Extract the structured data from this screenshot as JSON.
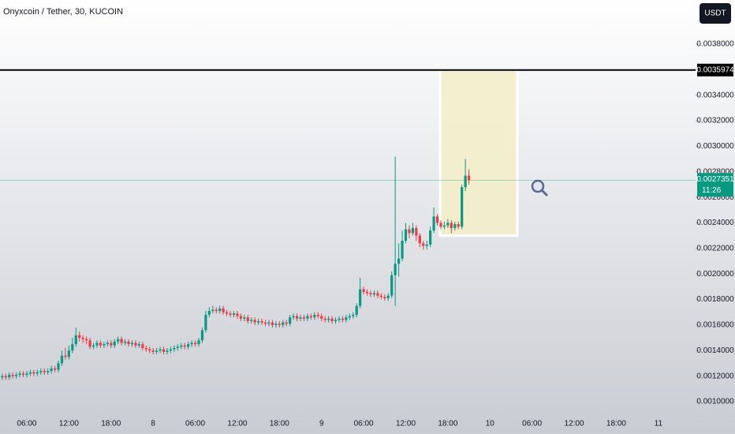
{
  "chart_data": {
    "type": "candlestick",
    "title": "Onyxcoin / Tether, 30, KUCOIN",
    "currency_button": "USDT",
    "up_color": "#089981",
    "down_color": "#f23645",
    "xlim": [
      2.18,
      101.3
    ],
    "ylim": [
      0.00087,
      0.004146
    ],
    "xticks": [
      {
        "value": 6,
        "label": "06:00"
      },
      {
        "value": 12,
        "label": "12:00"
      },
      {
        "value": 18,
        "label": "18:00"
      },
      {
        "value": 24,
        "label": "8"
      },
      {
        "value": 30,
        "label": "06:00"
      },
      {
        "value": 36,
        "label": "12:00"
      },
      {
        "value": 42,
        "label": "18:00"
      },
      {
        "value": 48,
        "label": "9"
      },
      {
        "value": 54,
        "label": "06:00"
      },
      {
        "value": 60,
        "label": "12:00"
      },
      {
        "value": 66,
        "label": "18:00"
      },
      {
        "value": 72,
        "label": "10"
      },
      {
        "value": 78,
        "label": "06:00"
      },
      {
        "value": 84,
        "label": "12:00"
      },
      {
        "value": 90,
        "label": "18:00"
      },
      {
        "value": 96,
        "label": "11"
      }
    ],
    "yticks": [
      {
        "value": 0.001,
        "label": "0.0010000"
      },
      {
        "value": 0.0012,
        "label": "0.0012000"
      },
      {
        "value": 0.0014,
        "label": "0.0014000"
      },
      {
        "value": 0.0016,
        "label": "0.0016000"
      },
      {
        "value": 0.0018,
        "label": "0.0018000"
      },
      {
        "value": 0.002,
        "label": "0.0020000"
      },
      {
        "value": 0.0022,
        "label": "0.0022000"
      },
      {
        "value": 0.0024,
        "label": "0.0024000"
      },
      {
        "value": 0.0026,
        "label": "0.0026000"
      },
      {
        "value": 0.0028,
        "label": "0.0028000"
      },
      {
        "value": 0.003,
        "label": "0.0030000"
      },
      {
        "value": 0.0032,
        "label": "0.0032000"
      },
      {
        "value": 0.0034,
        "label": "0.0034000"
      },
      {
        "value": 0.0036,
        "label": "0.0036000"
      },
      {
        "value": 0.0038,
        "label": "0.0038000"
      }
    ],
    "hline": {
      "value": 0.0035974,
      "label": "0.0035974",
      "color": "#000000"
    },
    "last_price": {
      "value": 0.0027351,
      "label": "0.0027351",
      "countdown": "11:26",
      "color": "#089981"
    },
    "rectangle": {
      "x": [
        64.9,
        75.9
      ],
      "y": [
        0.0023,
        0.0035974
      ],
      "fill": "#f3efc8",
      "stroke": "#ffffff"
    },
    "x": [
      2.5,
      3,
      3.5,
      4,
      4.5,
      5,
      5.5,
      6,
      6.5,
      7,
      7.5,
      8,
      8.5,
      9,
      9.5,
      10,
      10.5,
      11,
      11.5,
      12,
      12.5,
      13,
      13.5,
      14,
      14.5,
      15,
      15.5,
      16,
      16.5,
      17,
      17.5,
      18,
      18.5,
      19,
      19.5,
      20,
      20.5,
      21,
      21.5,
      22,
      22.5,
      23,
      23.5,
      24,
      24.5,
      25,
      25.5,
      26,
      26.5,
      27,
      27.5,
      28,
      28.5,
      29,
      29.5,
      30,
      30.5,
      31,
      31.5,
      32,
      32.5,
      33,
      33.5,
      34,
      34.5,
      35,
      35.5,
      36,
      36.5,
      37,
      37.5,
      38,
      38.5,
      39,
      39.5,
      40,
      40.5,
      41,
      41.5,
      42,
      42.5,
      43,
      43.5,
      44,
      44.5,
      45,
      45.5,
      46,
      46.5,
      47,
      47.5,
      48,
      48.5,
      49,
      49.5,
      50,
      50.5,
      51,
      51.5,
      52,
      52.5,
      53,
      53.5,
      54,
      54.5,
      55,
      55.5,
      56,
      56.5,
      57,
      57.5,
      58,
      58.5,
      59,
      59.5,
      60,
      60.5,
      61,
      61.5,
      62,
      62.5,
      63,
      63.5,
      64,
      64.5,
      65,
      65.5,
      66,
      66.5,
      67,
      67.5,
      68,
      68.5,
      69
    ],
    "open": [
      0.00119,
      0.0012,
      0.00119,
      0.00121,
      0.0012,
      0.00121,
      0.00122,
      0.00121,
      0.00122,
      0.00123,
      0.00122,
      0.00123,
      0.00124,
      0.00123,
      0.00124,
      0.00126,
      0.00125,
      0.0013,
      0.00136,
      0.00135,
      0.0014,
      0.00145,
      0.00152,
      0.0015,
      0.00149,
      0.00148,
      0.00143,
      0.00144,
      0.00146,
      0.00144,
      0.00145,
      0.00146,
      0.00144,
      0.00147,
      0.00149,
      0.00146,
      0.00147,
      0.00145,
      0.00146,
      0.00144,
      0.00145,
      0.00142,
      0.00141,
      0.0014,
      0.00139,
      0.0014,
      0.00141,
      0.00139,
      0.0014,
      0.00141,
      0.00142,
      0.00143,
      0.00144,
      0.00143,
      0.00145,
      0.00146,
      0.00145,
      0.00148,
      0.00156,
      0.00168,
      0.00171,
      0.00172,
      0.00171,
      0.00173,
      0.0017,
      0.00169,
      0.00168,
      0.00169,
      0.00167,
      0.00165,
      0.00166,
      0.00163,
      0.00164,
      0.00162,
      0.00163,
      0.00162,
      0.00161,
      0.00162,
      0.0016,
      0.00161,
      0.0016,
      0.00162,
      0.00161,
      0.00166,
      0.00167,
      0.00165,
      0.00166,
      0.00165,
      0.00167,
      0.00166,
      0.00168,
      0.00167,
      0.00165,
      0.00164,
      0.00165,
      0.00163,
      0.00164,
      0.00165,
      0.00164,
      0.00166,
      0.00167,
      0.00168,
      0.00175,
      0.00188,
      0.00186,
      0.00185,
      0.00184,
      0.00185,
      0.00183,
      0.00182,
      0.00181,
      0.00183,
      0.00199,
      0.00208,
      0.00212,
      0.00226,
      0.00235,
      0.00232,
      0.00236,
      0.0023,
      0.00224,
      0.00222,
      0.00223,
      0.00234,
      0.00245,
      0.0024,
      0.00237,
      0.00238,
      0.0024,
      0.00236,
      0.00239,
      0.00237,
      0.00268,
      0.00277
    ],
    "high": [
      0.00122,
      0.00122,
      0.00123,
      0.00123,
      0.00123,
      0.00124,
      0.00124,
      0.00124,
      0.00125,
      0.00125,
      0.00125,
      0.00126,
      0.00126,
      0.00126,
      0.00128,
      0.00128,
      0.00132,
      0.0014,
      0.00142,
      0.00144,
      0.0015,
      0.00158,
      0.00155,
      0.00152,
      0.00151,
      0.0015,
      0.00146,
      0.00148,
      0.00148,
      0.00147,
      0.00148,
      0.00148,
      0.00149,
      0.00151,
      0.00151,
      0.00149,
      0.00149,
      0.00148,
      0.00148,
      0.00147,
      0.00147,
      0.00144,
      0.00143,
      0.00142,
      0.00142,
      0.00143,
      0.00143,
      0.00142,
      0.00143,
      0.00144,
      0.00145,
      0.00146,
      0.00146,
      0.00147,
      0.00148,
      0.00148,
      0.0015,
      0.00158,
      0.00171,
      0.00174,
      0.00175,
      0.00174,
      0.00175,
      0.00175,
      0.00172,
      0.00171,
      0.00171,
      0.00171,
      0.00169,
      0.00168,
      0.00168,
      0.00166,
      0.00166,
      0.00165,
      0.00165,
      0.00164,
      0.00164,
      0.00164,
      0.00163,
      0.00163,
      0.00164,
      0.00164,
      0.00168,
      0.00169,
      0.00169,
      0.00168,
      0.00168,
      0.00169,
      0.00169,
      0.0017,
      0.0017,
      0.00169,
      0.00167,
      0.00167,
      0.00167,
      0.00166,
      0.00167,
      0.00167,
      0.00168,
      0.00169,
      0.0017,
      0.00177,
      0.00197,
      0.0019,
      0.00188,
      0.00187,
      0.00187,
      0.00187,
      0.00185,
      0.00184,
      0.00185,
      0.00202,
      0.00292,
      0.00224,
      0.00234,
      0.0024,
      0.00238,
      0.0024,
      0.00238,
      0.00232,
      0.00226,
      0.00226,
      0.00237,
      0.00252,
      0.00247,
      0.00242,
      0.00241,
      0.00243,
      0.00242,
      0.00241,
      0.00241,
      0.0027,
      0.0029,
      0.00282
    ],
    "low": [
      0.00117,
      0.00117,
      0.00117,
      0.00118,
      0.00118,
      0.00119,
      0.00119,
      0.00119,
      0.0012,
      0.0012,
      0.0012,
      0.00121,
      0.00121,
      0.00121,
      0.00122,
      0.00123,
      0.00123,
      0.00128,
      0.00133,
      0.00133,
      0.00138,
      0.00143,
      0.00147,
      0.00146,
      0.00145,
      0.00141,
      0.00141,
      0.00142,
      0.00142,
      0.00142,
      0.00143,
      0.00142,
      0.00142,
      0.00145,
      0.00144,
      0.00144,
      0.00143,
      0.00143,
      0.00142,
      0.00142,
      0.0014,
      0.00139,
      0.00138,
      0.00137,
      0.00137,
      0.00138,
      0.00137,
      0.00137,
      0.00138,
      0.00139,
      0.0014,
      0.00141,
      0.00141,
      0.00141,
      0.00143,
      0.00143,
      0.00143,
      0.00146,
      0.00154,
      0.00166,
      0.00169,
      0.00169,
      0.00169,
      0.00168,
      0.00167,
      0.00166,
      0.00166,
      0.00165,
      0.00163,
      0.00163,
      0.00161,
      0.00161,
      0.0016,
      0.0016,
      0.0016,
      0.00159,
      0.00159,
      0.00158,
      0.00158,
      0.00158,
      0.00158,
      0.00159,
      0.00159,
      0.00164,
      0.00163,
      0.00163,
      0.00163,
      0.00163,
      0.00164,
      0.00164,
      0.00165,
      0.00163,
      0.00162,
      0.00162,
      0.00161,
      0.00161,
      0.00162,
      0.00162,
      0.00162,
      0.00164,
      0.00165,
      0.00166,
      0.00173,
      0.00184,
      0.00183,
      0.00182,
      0.00182,
      0.00181,
      0.0018,
      0.00179,
      0.00179,
      0.00181,
      0.00175,
      0.00198,
      0.0021,
      0.00224,
      0.00228,
      0.0023,
      0.00226,
      0.00221,
      0.00219,
      0.00219,
      0.00221,
      0.00232,
      0.00238,
      0.00235,
      0.00235,
      0.00236,
      0.00232,
      0.00234,
      0.00235,
      0.00235,
      0.00265,
      0.0027
    ],
    "close": [
      0.0012,
      0.00119,
      0.00121,
      0.0012,
      0.00121,
      0.00122,
      0.00121,
      0.00122,
      0.00123,
      0.00122,
      0.00123,
      0.00124,
      0.00123,
      0.00124,
      0.00126,
      0.00125,
      0.0013,
      0.00136,
      0.00135,
      0.0014,
      0.00145,
      0.00152,
      0.0015,
      0.00149,
      0.00148,
      0.00143,
      0.00144,
      0.00146,
      0.00144,
      0.00145,
      0.00146,
      0.00144,
      0.00147,
      0.00149,
      0.00146,
      0.00147,
      0.00145,
      0.00146,
      0.00144,
      0.00145,
      0.00142,
      0.00141,
      0.0014,
      0.00139,
      0.0014,
      0.00141,
      0.00139,
      0.0014,
      0.00141,
      0.00142,
      0.00143,
      0.00144,
      0.00143,
      0.00145,
      0.00146,
      0.00145,
      0.00148,
      0.00156,
      0.00168,
      0.00171,
      0.00172,
      0.00171,
      0.00173,
      0.0017,
      0.00169,
      0.00168,
      0.00169,
      0.00167,
      0.00165,
      0.00166,
      0.00163,
      0.00164,
      0.00162,
      0.00163,
      0.00162,
      0.00161,
      0.00162,
      0.0016,
      0.00161,
      0.0016,
      0.00162,
      0.00161,
      0.00166,
      0.00167,
      0.00165,
      0.00166,
      0.00165,
      0.00167,
      0.00166,
      0.00168,
      0.00167,
      0.00165,
      0.00164,
      0.00165,
      0.00163,
      0.00164,
      0.00165,
      0.00164,
      0.00166,
      0.00167,
      0.00168,
      0.00175,
      0.00188,
      0.00186,
      0.00185,
      0.00184,
      0.00185,
      0.00183,
      0.00182,
      0.00181,
      0.00183,
      0.00199,
      0.00208,
      0.00212,
      0.00226,
      0.00235,
      0.00232,
      0.00236,
      0.0023,
      0.00224,
      0.00222,
      0.00223,
      0.00234,
      0.00245,
      0.0024,
      0.00237,
      0.00238,
      0.0024,
      0.00236,
      0.00239,
      0.00237,
      0.00268,
      0.00277,
      0.0027351
    ]
  }
}
